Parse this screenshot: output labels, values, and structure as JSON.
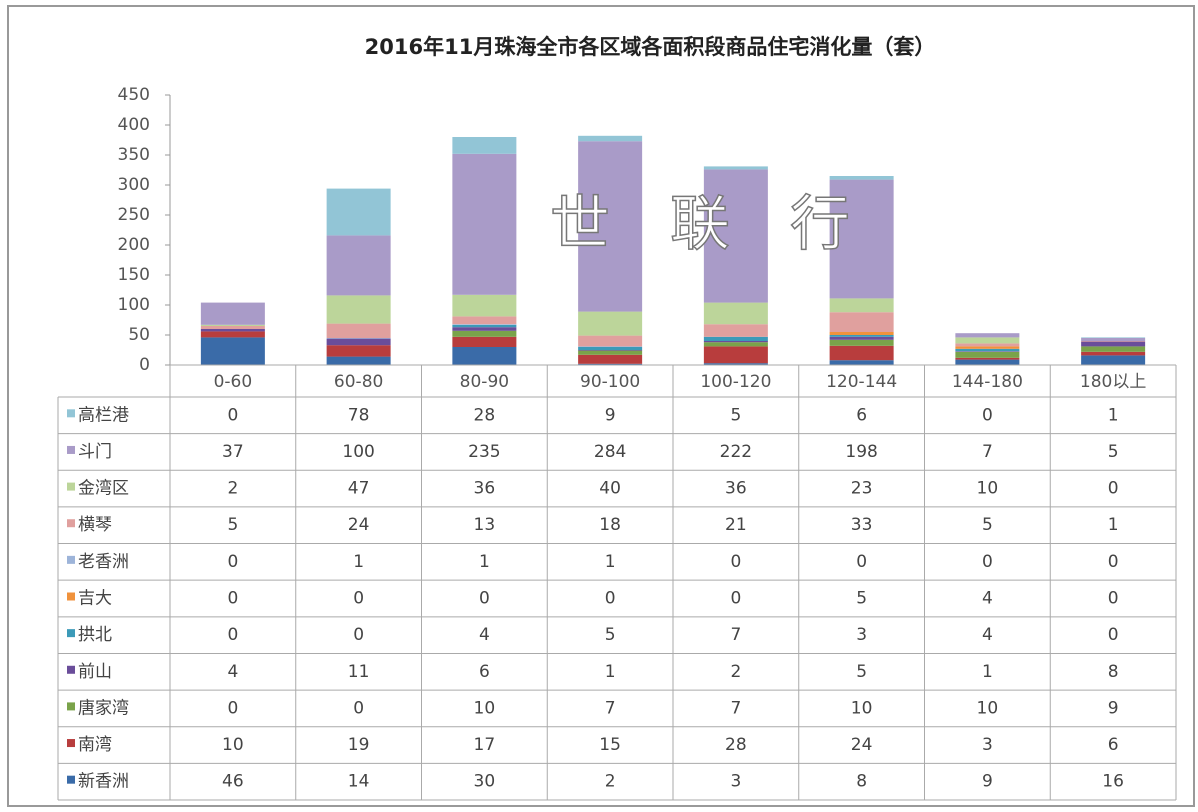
{
  "chart_data": {
    "type": "stacked_bar_table",
    "title": "2016年11月珠海全市各区域各面积段商品住宅消化量（套）",
    "watermark": "世　联　行",
    "categories": [
      "0-60",
      "60-80",
      "80-90",
      "90-100",
      "100-120",
      "120-144",
      "144-180",
      "180以上"
    ],
    "series": [
      {
        "name": "高栏港",
        "color": "#92c5d6",
        "values": [
          0,
          78,
          28,
          9,
          5,
          6,
          0,
          1
        ]
      },
      {
        "name": "斗门",
        "color": "#a99bc8",
        "values": [
          37,
          100,
          235,
          284,
          222,
          198,
          7,
          5
        ]
      },
      {
        "name": "金湾区",
        "color": "#bcd59a",
        "values": [
          2,
          47,
          36,
          40,
          36,
          23,
          10,
          0
        ]
      },
      {
        "name": "横琴",
        "color": "#e0a09e",
        "values": [
          5,
          24,
          13,
          18,
          21,
          33,
          5,
          1
        ]
      },
      {
        "name": "老香洲",
        "color": "#9db4d9",
        "values": [
          0,
          1,
          1,
          1,
          0,
          0,
          0,
          0
        ]
      },
      {
        "name": "吉大",
        "color": "#f0923c",
        "values": [
          0,
          0,
          0,
          0,
          0,
          5,
          4,
          0
        ]
      },
      {
        "name": "拱北",
        "color": "#3c9ab8",
        "values": [
          0,
          0,
          4,
          5,
          7,
          3,
          4,
          0
        ]
      },
      {
        "name": "前山",
        "color": "#6a4d9a",
        "values": [
          4,
          11,
          6,
          1,
          2,
          5,
          1,
          8
        ]
      },
      {
        "name": "唐家湾",
        "color": "#7aa34a",
        "values": [
          0,
          0,
          10,
          7,
          7,
          10,
          10,
          9
        ]
      },
      {
        "name": "南湾",
        "color": "#b83d3d",
        "values": [
          10,
          19,
          17,
          15,
          28,
          24,
          3,
          6
        ]
      },
      {
        "name": "新香洲",
        "color": "#3a6ba8",
        "values": [
          46,
          14,
          30,
          2,
          3,
          8,
          9,
          16
        ]
      }
    ],
    "ylim": [
      0,
      450
    ],
    "yticks": [
      0,
      50,
      100,
      150,
      200,
      250,
      300,
      350,
      400,
      450
    ]
  }
}
